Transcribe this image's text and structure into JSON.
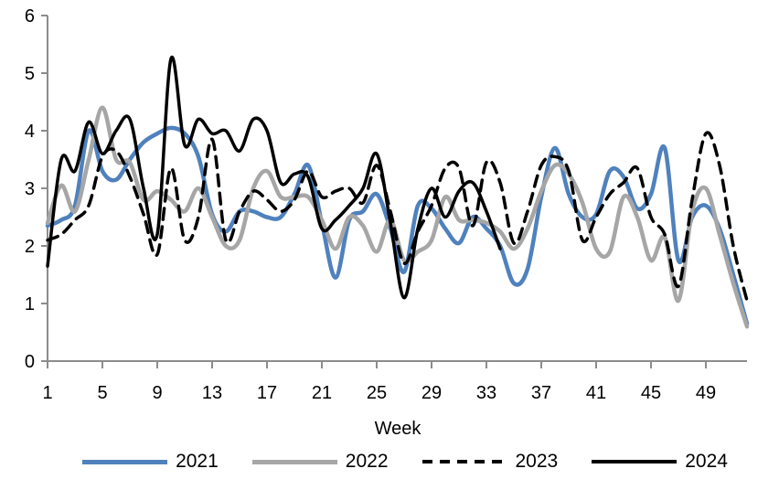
{
  "chart_data": {
    "type": "line",
    "title": "",
    "xlabel": "Week",
    "ylabel": "",
    "xlim": [
      1,
      52
    ],
    "ylim": [
      0,
      6
    ],
    "grid": false,
    "legend_position": "bottom",
    "axis_color": "#8C8C8C",
    "text_color": "#000000",
    "xticks": [
      1,
      5,
      9,
      13,
      17,
      21,
      25,
      29,
      33,
      37,
      41,
      45,
      49
    ],
    "yticks": [
      0,
      1,
      2,
      3,
      4,
      5,
      6
    ],
    "x_weeks": [
      1,
      2,
      3,
      4,
      5,
      6,
      7,
      8,
      9,
      10,
      11,
      12,
      13,
      14,
      15,
      16,
      17,
      18,
      19,
      20,
      21,
      22,
      23,
      24,
      25,
      26,
      27,
      28,
      29,
      30,
      31,
      32,
      33,
      34,
      35,
      36,
      37,
      38,
      39,
      40,
      41,
      42,
      43,
      44,
      45,
      46,
      47,
      48,
      49,
      50,
      51,
      52
    ],
    "series": [
      {
        "name": "2021",
        "color": "#4F81BD",
        "style": "solid",
        "width": 4.5,
        "values": [
          2.35,
          2.45,
          2.7,
          4.0,
          3.3,
          3.15,
          3.5,
          3.8,
          3.95,
          4.05,
          3.95,
          3.55,
          2.55,
          2.25,
          2.6,
          2.6,
          2.5,
          2.5,
          2.9,
          3.4,
          2.4,
          1.45,
          2.45,
          2.6,
          2.9,
          2.3,
          1.55,
          2.7,
          2.65,
          2.3,
          2.05,
          2.5,
          2.3,
          2.0,
          1.35,
          1.6,
          2.85,
          3.7,
          2.9,
          2.5,
          2.55,
          3.3,
          3.2,
          2.65,
          2.9,
          3.7,
          1.75,
          2.5,
          2.7,
          2.3,
          1.5,
          0.65
        ]
      },
      {
        "name": "2022",
        "color": "#A6A6A6",
        "style": "solid",
        "width": 4.5,
        "values": [
          2.4,
          3.05,
          2.6,
          3.5,
          4.4,
          3.5,
          3.45,
          2.8,
          2.95,
          2.8,
          2.6,
          3.0,
          2.5,
          2.0,
          2.1,
          3.0,
          3.3,
          2.85,
          2.85,
          2.85,
          2.45,
          1.95,
          2.5,
          2.35,
          1.9,
          2.45,
          1.75,
          1.9,
          2.1,
          2.85,
          2.45,
          2.45,
          2.4,
          2.25,
          1.95,
          2.3,
          2.95,
          3.4,
          3.25,
          2.75,
          1.95,
          1.9,
          2.85,
          2.5,
          1.75,
          2.15,
          1.05,
          2.6,
          3.0,
          2.2,
          1.35,
          0.6
        ]
      },
      {
        "name": "2023",
        "color": "#000000",
        "style": "dashed",
        "width": 3.5,
        "values": [
          2.1,
          2.2,
          2.45,
          2.7,
          3.55,
          3.65,
          3.2,
          2.55,
          1.85,
          3.35,
          2.1,
          2.5,
          3.85,
          2.1,
          2.6,
          2.95,
          2.8,
          2.6,
          2.8,
          3.3,
          2.85,
          2.95,
          3.0,
          2.75,
          3.4,
          2.6,
          1.7,
          2.25,
          2.7,
          3.35,
          3.35,
          2.35,
          3.45,
          3.1,
          2.05,
          2.6,
          3.4,
          3.55,
          3.3,
          2.1,
          2.5,
          2.9,
          3.1,
          3.35,
          2.5,
          2.2,
          1.3,
          2.8,
          3.95,
          3.4,
          2.0,
          1.05
        ]
      },
      {
        "name": "2024",
        "color": "#000000",
        "style": "solid",
        "width": 3.5,
        "values": [
          1.65,
          3.5,
          3.3,
          4.15,
          3.6,
          4.0,
          4.2,
          3.0,
          2.2,
          5.25,
          3.75,
          4.2,
          3.95,
          4.0,
          3.65,
          4.2,
          4.0,
          3.1,
          3.25,
          3.2,
          2.3,
          2.45,
          2.7,
          3.0,
          3.6,
          2.4,
          1.1,
          2.3,
          3.0,
          2.5,
          2.95,
          3.1,
          2.6,
          1.95
        ]
      }
    ]
  }
}
